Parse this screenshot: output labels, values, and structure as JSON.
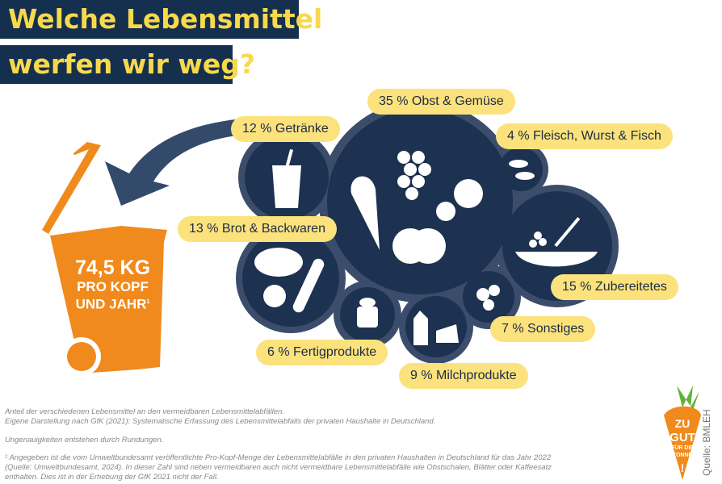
{
  "title": {
    "line1": "Welche Lebensmittel",
    "line2": "werfen wir weg?"
  },
  "bin": {
    "amount": "74,5 KG",
    "line2": "PRO KOPF",
    "line3": "UND JAHR",
    "footnote_mark": "1"
  },
  "categories": [
    {
      "label": "35 % Obst & Gemüse",
      "percent": 35,
      "icon": "fruit-vegetable-icon"
    },
    {
      "label": "12 % Getränke",
      "percent": 12,
      "icon": "drink-glass-icon"
    },
    {
      "label": "4 % Fleisch, Wurst & Fisch",
      "percent": 4,
      "icon": "fish-icon"
    },
    {
      "label": "13 % Brot & Backwaren",
      "percent": 13,
      "icon": "bread-icon"
    },
    {
      "label": "15 % Zubereitetes",
      "percent": 15,
      "icon": "prepared-meal-icon"
    },
    {
      "label": "7 % Sonstiges",
      "percent": 7,
      "icon": "other-icon"
    },
    {
      "label": "6 % Fertigprodukte",
      "percent": 6,
      "icon": "canned-food-icon"
    },
    {
      "label": "9 % Milchprodukte",
      "percent": 9,
      "icon": "dairy-icon"
    }
  ],
  "notes": {
    "n1": "Anteil der verschiedenen Lebensmittel an den vermeidbaren Lebensmittelabfällen.",
    "n2": "Eigene Darstellung nach GfK (2021): Systematische Erfassung des Lebensmittelabfalls der privaten Haushalte in Deutschland.",
    "n3": "Ungenauigkeiten entstehen durch Rundungen.",
    "n4": "¹ Angegeben ist die vom Umweltbundesamt veröffentlichte Pro-Kopf-Menge der Lebensmittelabfälle in den privaten Haushalten in Deutschland für das Jahr 2022",
    "n5": "(Quelle: Umweltbundesamt, 2024). In dieser Zahl sind neben vermeidbaren auch nicht vermeidbare Lebensmittelabfälle wie Obstschalen, Blätter oder Kaffeesatz",
    "n6": "enthalten. Dies ist in der Erhebung der GfK 2021 nicht der Fall."
  },
  "logo": {
    "text": "ZU GUT FÜR DIE TONNE!"
  },
  "source": "Quelle: BMLEH",
  "colors": {
    "navy": "#15304f",
    "yellow": "#f8d94b",
    "orange": "#f08a1c",
    "pill": "#fbe27c",
    "circle": "#1d3150",
    "halo": "#3b4d6b"
  }
}
